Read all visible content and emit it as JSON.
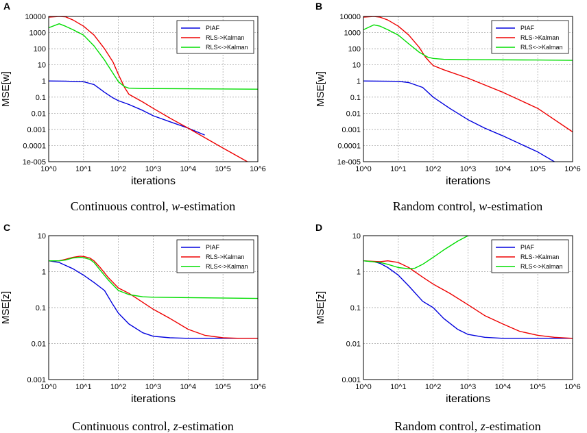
{
  "colors": {
    "PIAF": "#0000dd",
    "RLS->Kalman": "#ee0000",
    "RLS<->Kalman": "#00dd00"
  },
  "chart_data": [
    {
      "type": "line",
      "panel": "A",
      "caption_prefix": "Continuous control, ",
      "caption_var": "w",
      "caption_suffix": "-estimation",
      "xlabel": "iterations",
      "ylabel": "MSE[w]",
      "xscale": "log",
      "yscale": "log",
      "xlim": [
        1,
        1000000
      ],
      "ylim": [
        1e-05,
        10000
      ],
      "xticks": [
        "10^0",
        "10^1",
        "10^2",
        "10^3",
        "10^4",
        "10^5",
        "10^6"
      ],
      "yticks": [
        "1e-005",
        "0.0001",
        "0.001",
        "0.01",
        "0.1",
        "1",
        "10",
        "100",
        "1000",
        "10000"
      ],
      "grid": true,
      "legend": "top-right",
      "series": [
        {
          "name": "PIAF",
          "x": [
            1,
            3,
            10,
            20,
            40,
            70,
            100,
            200,
            500,
            1000,
            3000,
            10000,
            30000
          ],
          "y": [
            1,
            0.98,
            0.9,
            0.6,
            0.2,
            0.09,
            0.06,
            0.035,
            0.015,
            0.007,
            0.003,
            0.0012,
            0.00045
          ]
        },
        {
          "name": "RLS->Kalman",
          "x": [
            1,
            2,
            3,
            5,
            10,
            20,
            40,
            70,
            100,
            150,
            200,
            500,
            1000,
            3000,
            10000,
            100000,
            500000
          ],
          "y": [
            9000,
            10000,
            9500,
            6000,
            2500,
            700,
            100,
            15,
            2.5,
            0.4,
            0.15,
            0.05,
            0.02,
            0.005,
            0.0012,
            7e-05,
            1e-05
          ]
        },
        {
          "name": "RLS<->Kalman",
          "x": [
            1,
            2,
            3,
            5,
            10,
            20,
            40,
            70,
            100,
            150,
            200,
            500,
            1000,
            10000,
            1000000
          ],
          "y": [
            2000,
            3500,
            2500,
            1500,
            700,
            150,
            20,
            3,
            0.9,
            0.45,
            0.36,
            0.34,
            0.34,
            0.33,
            0.31
          ]
        }
      ]
    },
    {
      "type": "line",
      "panel": "B",
      "caption_prefix": "Random control, ",
      "caption_var": "w",
      "caption_suffix": "-estimation",
      "xlabel": "iterations",
      "ylabel": "MSE[w]",
      "xscale": "log",
      "yscale": "log",
      "xlim": [
        1,
        1000000
      ],
      "ylim": [
        1e-05,
        10000
      ],
      "xticks": [
        "10^0",
        "10^1",
        "10^2",
        "10^3",
        "10^4",
        "10^5",
        "10^6"
      ],
      "yticks": [
        "1e-005",
        "0.0001",
        "0.001",
        "0.01",
        "0.1",
        "1",
        "10",
        "100",
        "1000",
        "10000"
      ],
      "grid": true,
      "legend": "top-right",
      "series": [
        {
          "name": "PIAF",
          "x": [
            1,
            10,
            20,
            50,
            100,
            300,
            1000,
            3000,
            10000,
            100000,
            300000
          ],
          "y": [
            1,
            0.95,
            0.8,
            0.4,
            0.1,
            0.02,
            0.004,
            0.0012,
            0.0004,
            4e-05,
            1e-05
          ]
        },
        {
          "name": "RLS->Kalman",
          "x": [
            1,
            2,
            3,
            5,
            10,
            20,
            40,
            60,
            80,
            100,
            200,
            1000,
            10000,
            100000,
            1000000
          ],
          "y": [
            9000,
            10000,
            9000,
            6000,
            2500,
            700,
            120,
            30,
            15,
            9,
            5,
            1.5,
            0.2,
            0.02,
            0.0007
          ]
        },
        {
          "name": "RLS<->Kalman",
          "x": [
            1,
            2,
            3,
            5,
            10,
            20,
            40,
            70,
            100,
            200,
            1000,
            100000,
            1000000
          ],
          "y": [
            1500,
            3000,
            2500,
            1500,
            700,
            200,
            60,
            30,
            25,
            22,
            21,
            20,
            19
          ]
        }
      ]
    },
    {
      "type": "line",
      "panel": "C",
      "caption_prefix": "Continuous control, ",
      "caption_var": "z",
      "caption_suffix": "-estimation",
      "xlabel": "iterations",
      "ylabel": "MSE[z]",
      "xscale": "log",
      "yscale": "log",
      "xlim": [
        1,
        1000000
      ],
      "ylim": [
        0.001,
        10
      ],
      "xticks": [
        "10^0",
        "10^1",
        "10^2",
        "10^3",
        "10^4",
        "10^5",
        "10^6"
      ],
      "yticks": [
        "0.001",
        "0.01",
        "0.1",
        "1",
        "10"
      ],
      "grid": true,
      "legend": "top-right",
      "series": [
        {
          "name": "PIAF",
          "x": [
            1,
            2,
            3,
            5,
            10,
            20,
            40,
            70,
            100,
            200,
            500,
            1000,
            3000,
            10000,
            100000,
            1000000
          ],
          "y": [
            2,
            1.8,
            1.5,
            1.2,
            0.8,
            0.5,
            0.3,
            0.12,
            0.07,
            0.035,
            0.02,
            0.016,
            0.0145,
            0.014,
            0.014,
            0.014
          ]
        },
        {
          "name": "RLS->Kalman",
          "x": [
            1,
            2,
            3,
            5,
            8,
            10,
            15,
            20,
            30,
            50,
            100,
            200,
            500,
            1000,
            3000,
            10000,
            30000,
            100000,
            300000,
            1000000
          ],
          "y": [
            2,
            2,
            2.2,
            2.5,
            2.7,
            2.65,
            2.4,
            2.0,
            1.3,
            0.7,
            0.35,
            0.25,
            0.14,
            0.09,
            0.05,
            0.025,
            0.017,
            0.0145,
            0.014,
            0.014
          ]
        },
        {
          "name": "RLS<->Kalman",
          "x": [
            1,
            2,
            3,
            5,
            8,
            10,
            15,
            20,
            30,
            50,
            100,
            200,
            500,
            1000,
            10000,
            1000000
          ],
          "y": [
            2,
            2,
            2.1,
            2.4,
            2.5,
            2.45,
            2.2,
            1.8,
            1.1,
            0.6,
            0.3,
            0.23,
            0.2,
            0.195,
            0.19,
            0.18
          ]
        }
      ]
    },
    {
      "type": "line",
      "panel": "D",
      "caption_prefix": "Random control, ",
      "caption_var": "z",
      "caption_suffix": "-estimation",
      "xlabel": "iterations",
      "ylabel": "MSE[z]",
      "xscale": "log",
      "yscale": "log",
      "xlim": [
        1,
        1000000
      ],
      "ylim": [
        0.001,
        10
      ],
      "xticks": [
        "10^0",
        "10^1",
        "10^2",
        "10^3",
        "10^4",
        "10^5",
        "10^6"
      ],
      "yticks": [
        "0.001",
        "0.01",
        "0.1",
        "1",
        "10"
      ],
      "grid": true,
      "legend": "top-right",
      "series": [
        {
          "name": "PIAF",
          "x": [
            1,
            2,
            3,
            5,
            10,
            20,
            50,
            100,
            200,
            500,
            1000,
            3000,
            10000,
            100000,
            1000000
          ],
          "y": [
            2,
            1.9,
            1.7,
            1.3,
            0.8,
            0.4,
            0.15,
            0.1,
            0.05,
            0.025,
            0.018,
            0.015,
            0.014,
            0.014,
            0.014
          ]
        },
        {
          "name": "RLS->Kalman",
          "x": [
            1,
            3,
            5,
            10,
            20,
            50,
            100,
            300,
            1000,
            3000,
            10000,
            30000,
            100000,
            300000,
            1000000
          ],
          "y": [
            2,
            1.9,
            2.0,
            1.8,
            1.3,
            0.7,
            0.45,
            0.25,
            0.12,
            0.06,
            0.035,
            0.022,
            0.017,
            0.015,
            0.014
          ]
        },
        {
          "name": "RLS<->Kalman",
          "x": [
            1,
            3,
            5,
            10,
            20,
            30,
            50,
            100,
            200,
            500,
            1000
          ],
          "y": [
            2,
            1.8,
            1.6,
            1.3,
            1.2,
            1.25,
            1.6,
            2.5,
            4,
            7,
            10
          ]
        }
      ]
    }
  ]
}
